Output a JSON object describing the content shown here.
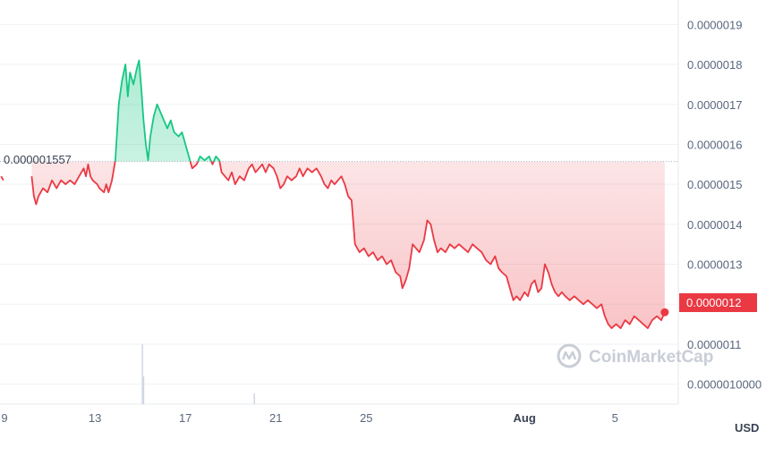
{
  "chart_data": {
    "type": "line",
    "currency": "USD",
    "reference_value_label": "0.000001557",
    "reference_value": 1.557e-06,
    "last_value_label": "0.0000012",
    "last_value": 1.2e-06,
    "watermark": "CoinMarketCap",
    "y_ticks": [
      "0.0000019",
      "0.0000018",
      "0.0000017",
      "0.0000016",
      "0.0000015",
      "0.0000014",
      "0.0000013",
      "0.0000012",
      "0.0000011",
      "0.0000010000"
    ],
    "y_tick_values": [
      1.9,
      1.8,
      1.7,
      1.6,
      1.5,
      1.4,
      1.3,
      1.2,
      1.1,
      1.0
    ],
    "ylim": [
      0.95,
      1.95
    ],
    "x_ticks": [
      {
        "label": "9",
        "t": 9,
        "bold": false
      },
      {
        "label": "13",
        "t": 13,
        "bold": false
      },
      {
        "label": "17",
        "t": 17,
        "bold": false
      },
      {
        "label": "21",
        "t": 21,
        "bold": false
      },
      {
        "label": "25",
        "t": 25,
        "bold": false
      },
      {
        "label": "Aug",
        "t": 32,
        "bold": true
      },
      {
        "label": "5",
        "t": 36,
        "bold": false
      }
    ],
    "xlim": [
      8.8,
      38.8
    ],
    "series": [
      {
        "values_unit": "1e-6 USD",
        "points": [
          [
            8.85,
            1.52
          ],
          [
            8.95,
            1.51
          ],
          [
            10.2,
            1.52
          ],
          [
            10.3,
            1.47
          ],
          [
            10.4,
            1.45
          ],
          [
            10.5,
            1.47
          ],
          [
            10.7,
            1.49
          ],
          [
            10.9,
            1.48
          ],
          [
            11.1,
            1.51
          ],
          [
            11.3,
            1.49
          ],
          [
            11.5,
            1.51
          ],
          [
            11.7,
            1.5
          ],
          [
            11.9,
            1.51
          ],
          [
            12.1,
            1.5
          ],
          [
            12.3,
            1.52
          ],
          [
            12.5,
            1.54
          ],
          [
            12.6,
            1.52
          ],
          [
            12.7,
            1.55
          ],
          [
            12.8,
            1.52
          ],
          [
            12.9,
            1.51
          ],
          [
            13.1,
            1.5
          ],
          [
            13.2,
            1.49
          ],
          [
            13.4,
            1.48
          ],
          [
            13.5,
            1.5
          ],
          [
            13.6,
            1.48
          ],
          [
            13.75,
            1.51
          ],
          [
            13.9,
            1.56
          ],
          [
            14.05,
            1.7
          ],
          [
            14.2,
            1.76
          ],
          [
            14.35,
            1.8
          ],
          [
            14.45,
            1.72
          ],
          [
            14.55,
            1.78
          ],
          [
            14.7,
            1.75
          ],
          [
            14.85,
            1.79
          ],
          [
            14.95,
            1.81
          ],
          [
            15.05,
            1.74
          ],
          [
            15.15,
            1.66
          ],
          [
            15.25,
            1.6
          ],
          [
            15.35,
            1.56
          ],
          [
            15.45,
            1.62
          ],
          [
            15.6,
            1.67
          ],
          [
            15.75,
            1.7
          ],
          [
            15.9,
            1.68
          ],
          [
            16.05,
            1.66
          ],
          [
            16.2,
            1.64
          ],
          [
            16.35,
            1.66
          ],
          [
            16.5,
            1.63
          ],
          [
            16.7,
            1.62
          ],
          [
            16.85,
            1.63
          ],
          [
            17.0,
            1.6
          ],
          [
            17.15,
            1.57
          ],
          [
            17.3,
            1.54
          ],
          [
            17.5,
            1.55
          ],
          [
            17.65,
            1.57
          ],
          [
            17.85,
            1.56
          ],
          [
            18.05,
            1.57
          ],
          [
            18.2,
            1.55
          ],
          [
            18.35,
            1.57
          ],
          [
            18.5,
            1.56
          ],
          [
            18.6,
            1.53
          ],
          [
            18.75,
            1.52
          ],
          [
            18.9,
            1.51
          ],
          [
            19.05,
            1.53
          ],
          [
            19.2,
            1.5
          ],
          [
            19.4,
            1.52
          ],
          [
            19.6,
            1.51
          ],
          [
            19.8,
            1.54
          ],
          [
            19.95,
            1.55
          ],
          [
            20.1,
            1.53
          ],
          [
            20.25,
            1.54
          ],
          [
            20.4,
            1.55
          ],
          [
            20.55,
            1.53
          ],
          [
            20.7,
            1.55
          ],
          [
            20.9,
            1.54
          ],
          [
            21.05,
            1.52
          ],
          [
            21.2,
            1.49
          ],
          [
            21.35,
            1.5
          ],
          [
            21.5,
            1.52
          ],
          [
            21.7,
            1.51
          ],
          [
            21.9,
            1.52
          ],
          [
            22.05,
            1.54
          ],
          [
            22.2,
            1.52
          ],
          [
            22.4,
            1.54
          ],
          [
            22.6,
            1.53
          ],
          [
            22.8,
            1.54
          ],
          [
            23.0,
            1.52
          ],
          [
            23.15,
            1.5
          ],
          [
            23.3,
            1.49
          ],
          [
            23.45,
            1.51
          ],
          [
            23.6,
            1.5
          ],
          [
            23.75,
            1.51
          ],
          [
            23.9,
            1.52
          ],
          [
            24.05,
            1.5
          ],
          [
            24.2,
            1.47
          ],
          [
            24.35,
            1.46
          ],
          [
            24.5,
            1.35
          ],
          [
            24.7,
            1.33
          ],
          [
            24.9,
            1.34
          ],
          [
            25.1,
            1.32
          ],
          [
            25.3,
            1.33
          ],
          [
            25.5,
            1.31
          ],
          [
            25.7,
            1.32
          ],
          [
            25.9,
            1.3
          ],
          [
            26.1,
            1.31
          ],
          [
            26.3,
            1.28
          ],
          [
            26.5,
            1.27
          ],
          [
            26.6,
            1.24
          ],
          [
            26.75,
            1.26
          ],
          [
            26.9,
            1.29
          ],
          [
            27.05,
            1.35
          ],
          [
            27.2,
            1.34
          ],
          [
            27.35,
            1.33
          ],
          [
            27.55,
            1.36
          ],
          [
            27.7,
            1.41
          ],
          [
            27.85,
            1.4
          ],
          [
            28.0,
            1.36
          ],
          [
            28.15,
            1.33
          ],
          [
            28.3,
            1.34
          ],
          [
            28.5,
            1.33
          ],
          [
            28.7,
            1.35
          ],
          [
            28.9,
            1.34
          ],
          [
            29.1,
            1.35
          ],
          [
            29.3,
            1.34
          ],
          [
            29.5,
            1.33
          ],
          [
            29.7,
            1.35
          ],
          [
            29.9,
            1.34
          ],
          [
            30.1,
            1.33
          ],
          [
            30.3,
            1.31
          ],
          [
            30.5,
            1.3
          ],
          [
            30.7,
            1.32
          ],
          [
            30.85,
            1.29
          ],
          [
            31.0,
            1.28
          ],
          [
            31.2,
            1.27
          ],
          [
            31.35,
            1.24
          ],
          [
            31.5,
            1.21
          ],
          [
            31.65,
            1.22
          ],
          [
            31.8,
            1.21
          ],
          [
            32.0,
            1.23
          ],
          [
            32.15,
            1.22
          ],
          [
            32.3,
            1.25
          ],
          [
            32.45,
            1.26
          ],
          [
            32.6,
            1.23
          ],
          [
            32.75,
            1.24
          ],
          [
            32.9,
            1.3
          ],
          [
            33.05,
            1.28
          ],
          [
            33.2,
            1.25
          ],
          [
            33.35,
            1.23
          ],
          [
            33.5,
            1.22
          ],
          [
            33.65,
            1.23
          ],
          [
            33.8,
            1.22
          ],
          [
            34.0,
            1.21
          ],
          [
            34.2,
            1.22
          ],
          [
            34.4,
            1.21
          ],
          [
            34.6,
            1.2
          ],
          [
            34.8,
            1.21
          ],
          [
            35.0,
            1.2
          ],
          [
            35.2,
            1.19
          ],
          [
            35.4,
            1.2
          ],
          [
            35.55,
            1.17
          ],
          [
            35.7,
            1.15
          ],
          [
            35.85,
            1.14
          ],
          [
            36.05,
            1.15
          ],
          [
            36.25,
            1.14
          ],
          [
            36.45,
            1.16
          ],
          [
            36.65,
            1.15
          ],
          [
            36.85,
            1.17
          ],
          [
            37.05,
            1.16
          ],
          [
            37.25,
            1.15
          ],
          [
            37.45,
            1.14
          ],
          [
            37.65,
            1.16
          ],
          [
            37.85,
            1.17
          ],
          [
            38.05,
            1.16
          ],
          [
            38.2,
            1.18
          ]
        ]
      }
    ],
    "volume_bars": [
      {
        "t": 15.1,
        "v": 1.0
      },
      {
        "t": 15.15,
        "v": 0.46
      },
      {
        "t": 20.05,
        "v": 0.18
      }
    ],
    "colors": {
      "up": "#16c784",
      "down": "#ea3943",
      "grid": "#eff2f5",
      "ref_line": "#a6b0c3",
      "volume": "#cfd6e4"
    }
  }
}
